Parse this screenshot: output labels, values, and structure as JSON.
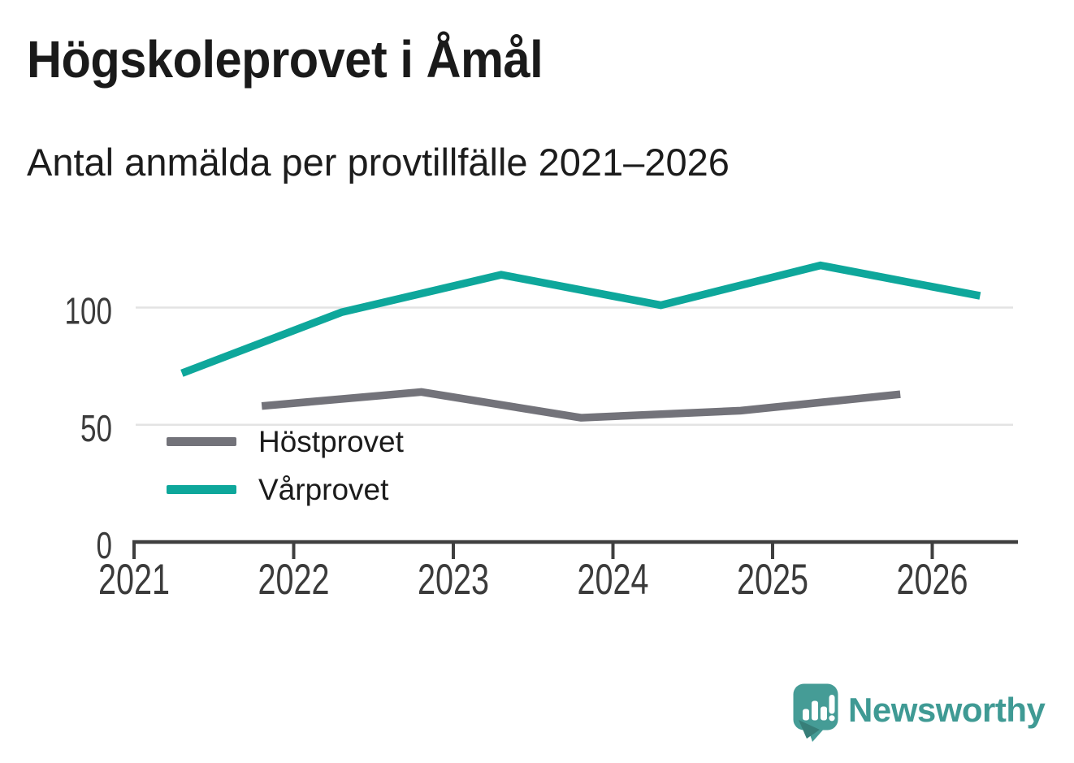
{
  "header": {
    "title": "Högskoleprovet i Åmål",
    "subtitle": "Antal anmälda per provtillfälle 2021–2026"
  },
  "chart_data": {
    "type": "line",
    "title": "Högskoleprovet i Åmål",
    "subtitle": "Antal anmälda per provtillfälle 2021–2026",
    "xlabel": "",
    "ylabel": "",
    "x_ticks": [
      2021,
      2022,
      2023,
      2024,
      2025,
      2026
    ],
    "y_ticks": [
      0,
      50,
      100
    ],
    "xlim": [
      2021,
      2026.55
    ],
    "ylim": [
      0,
      125
    ],
    "grid": "horizontal-only",
    "legend_position": "inside-bottom-left",
    "series": [
      {
        "key": "hostprovet",
        "name": "Höstprovet",
        "color": "#73737a",
        "points": [
          {
            "x": 2021.8,
            "y": 58
          },
          {
            "x": 2022.8,
            "y": 64
          },
          {
            "x": 2023.8,
            "y": 53
          },
          {
            "x": 2024.8,
            "y": 56
          },
          {
            "x": 2025.8,
            "y": 63
          }
        ]
      },
      {
        "key": "varprovet",
        "name": "Vårprovet",
        "color": "#0ea79b",
        "points": [
          {
            "x": 2021.3,
            "y": 72
          },
          {
            "x": 2022.3,
            "y": 98
          },
          {
            "x": 2023.3,
            "y": 114
          },
          {
            "x": 2024.3,
            "y": 101
          },
          {
            "x": 2025.3,
            "y": 118
          },
          {
            "x": 2026.3,
            "y": 105
          }
        ]
      }
    ]
  },
  "colors": {
    "background": "#ffffff",
    "gridline": "#e3e3e3",
    "axis": "#3f3f3f",
    "axis_text": "#3b3b3b",
    "title_text": "#1a1a1a",
    "legend_text": "#1b1b1b"
  },
  "branding": {
    "logo_text": "Newsworthy",
    "logo_icon": "newsworthy-speech-bubble-chart-icon",
    "icon_color": "#459c96",
    "icon_shadow_color": "#377e78",
    "icon_glyph_color": "#ffffff",
    "text_color": "#3f9a94"
  }
}
